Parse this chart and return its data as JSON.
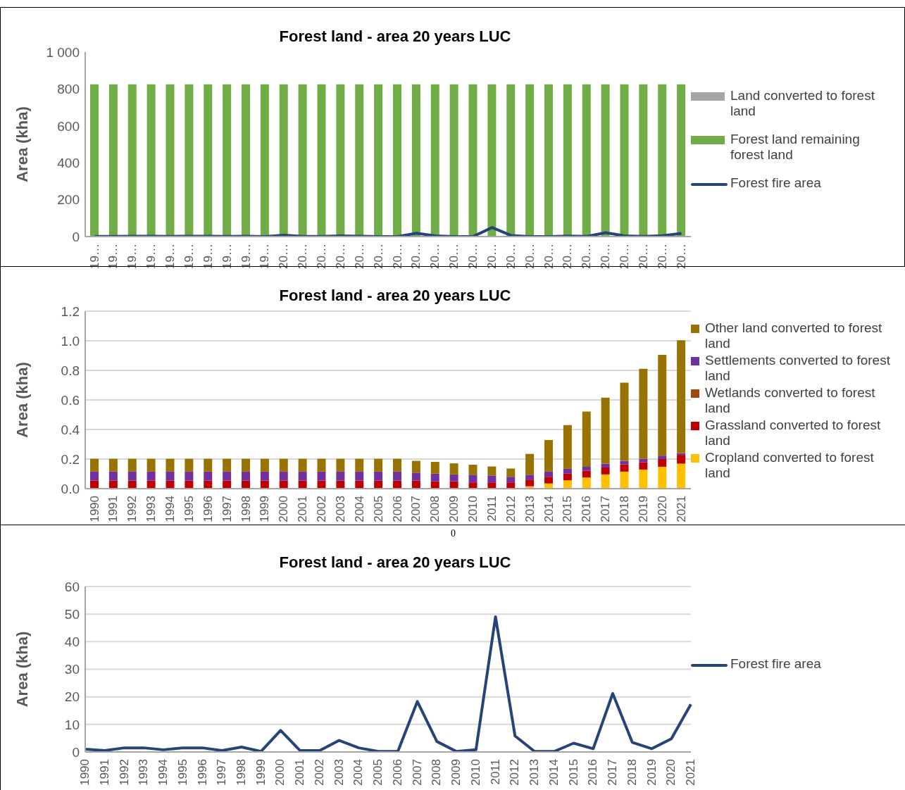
{
  "chart_data": [
    {
      "type": "bar",
      "title": "Forest land - area 20 years LUC",
      "ylabel": "Area (kha)",
      "stacked": true,
      "grid": false,
      "legend": "right",
      "marker": "none",
      "categories": [
        "19…",
        "19…",
        "19…",
        "19…",
        "19…",
        "19…",
        "19…",
        "19…",
        "19…",
        "19…",
        "20…",
        "20…",
        "20…",
        "20…",
        "20…",
        "20…",
        "20…",
        "20…",
        "20…",
        "20…",
        "20…",
        "20…",
        "20…",
        "20…",
        "20…",
        "20…",
        "20…",
        "20…",
        "20…",
        "20…",
        "20…",
        "20…"
      ],
      "ylim": [
        0,
        1000
      ],
      "yticks": [
        0,
        200,
        400,
        600,
        800,
        {
          "value": 1000,
          "label": "1 000"
        }
      ],
      "series": [
        {
          "name": "Forest land remaining forest land",
          "color": "#70ad47",
          "values": [
            825,
            825,
            825,
            825,
            825,
            825,
            825,
            825,
            825,
            825,
            825,
            825,
            825,
            825,
            825,
            825,
            825,
            825,
            825,
            825,
            825,
            825,
            825,
            825,
            825,
            825,
            825,
            825,
            825,
            825,
            825,
            825
          ]
        },
        {
          "name": "Land converted to forest land",
          "color": "#a5a5a5",
          "values": [
            0,
            0,
            0,
            0,
            0,
            0,
            0,
            0,
            0,
            0,
            0,
            0,
            0,
            0,
            0,
            0,
            0,
            0,
            0,
            0,
            0,
            0,
            0,
            0,
            0,
            0,
            0,
            0,
            0,
            0,
            0,
            0
          ]
        },
        {
          "name": "Forest fire area",
          "type": "line",
          "color": "#264478",
          "values": [
            1,
            1,
            2,
            2,
            1,
            2,
            2,
            1,
            2,
            0,
            8,
            1,
            1,
            4,
            2,
            0,
            0,
            18,
            4,
            0,
            1,
            49,
            6,
            0,
            0,
            3,
            1,
            21,
            4,
            1,
            5,
            17
          ]
        }
      ]
    },
    {
      "type": "bar",
      "title": "Forest land - area 20 years LUC",
      "ylabel": "Area (kha)",
      "stacked": true,
      "grid": "y",
      "legend": "right",
      "categories": [
        "1990",
        "1991",
        "1992",
        "1993",
        "1994",
        "1995",
        "1996",
        "1997",
        "1998",
        "1999",
        "2000",
        "2001",
        "2002",
        "2003",
        "2004",
        "2005",
        "2006",
        "2007",
        "2008",
        "2009",
        "2010",
        "2011",
        "2012",
        "2013",
        "2014",
        "2015",
        "2016",
        "2017",
        "2018",
        "2019",
        "2020",
        "2021"
      ],
      "ylim": [
        0,
        1.2
      ],
      "yticks": [
        {
          "value": 0,
          "label": "0.0"
        },
        {
          "value": 0.2,
          "label": "0.2"
        },
        {
          "value": 0.4,
          "label": "0.4"
        },
        {
          "value": 0.6,
          "label": "0.6"
        },
        {
          "value": 0.8,
          "label": "0.8"
        },
        {
          "value": 1,
          "label": "1.0"
        },
        {
          "value": 1.2,
          "label": "1.2"
        }
      ],
      "series": [
        {
          "name": "Cropland converted to forest land",
          "color": "#ffc000",
          "values": [
            0,
            0,
            0,
            0,
            0,
            0,
            0,
            0,
            0,
            0,
            0,
            0,
            0,
            0,
            0,
            0,
            0,
            0,
            0,
            0,
            0,
            0,
            0,
            0.016,
            0.035,
            0.056,
            0.075,
            0.096,
            0.115,
            0.129,
            0.148,
            0.169
          ]
        },
        {
          "name": "Grassland converted to forest land",
          "color": "#c00000",
          "values": [
            0.054,
            0.054,
            0.054,
            0.054,
            0.054,
            0.054,
            0.054,
            0.054,
            0.054,
            0.054,
            0.054,
            0.054,
            0.054,
            0.054,
            0.054,
            0.054,
            0.054,
            0.054,
            0.049,
            0.049,
            0.042,
            0.042,
            0.042,
            0.045,
            0.045,
            0.045,
            0.047,
            0.047,
            0.049,
            0.05,
            0.052,
            0.059
          ]
        },
        {
          "name": "Wetlands converted to forest land",
          "color": "#9e480e",
          "values": [
            0,
            0,
            0,
            0,
            0,
            0,
            0,
            0,
            0,
            0,
            0,
            0,
            0,
            0,
            0,
            0,
            0,
            0,
            0,
            0,
            0,
            0,
            0,
            0,
            0,
            0,
            0,
            0,
            0,
            0,
            0,
            0
          ]
        },
        {
          "name": "Settlements converted to forest land",
          "color": "#7030a0",
          "values": [
            0.061,
            0.061,
            0.061,
            0.061,
            0.061,
            0.061,
            0.061,
            0.061,
            0.061,
            0.061,
            0.061,
            0.061,
            0.061,
            0.061,
            0.061,
            0.061,
            0.061,
            0.054,
            0.052,
            0.047,
            0.052,
            0.047,
            0.038,
            0.033,
            0.035,
            0.033,
            0.026,
            0.026,
            0.024,
            0.023,
            0.023,
            0.012
          ]
        },
        {
          "name": "Other land converted to forest land",
          "color": "#997300",
          "values": [
            0.087,
            0.087,
            0.087,
            0.087,
            0.087,
            0.087,
            0.087,
            0.087,
            0.087,
            0.087,
            0.087,
            0.087,
            0.087,
            0.087,
            0.087,
            0.087,
            0.087,
            0.08,
            0.08,
            0.075,
            0.068,
            0.061,
            0.056,
            0.141,
            0.214,
            0.296,
            0.374,
            0.447,
            0.529,
            0.609,
            0.682,
            0.763
          ]
        }
      ]
    },
    {
      "type": "line",
      "title": "Forest land - area 20 years LUC",
      "ylabel": "Area (kha)",
      "grid": "y",
      "legend": "right",
      "marker": "none",
      "annotations": [
        "0"
      ],
      "categories": [
        "1990",
        "1991",
        "1992",
        "1993",
        "1994",
        "1995",
        "1996",
        "1997",
        "1998",
        "1999",
        "2000",
        "2001",
        "2002",
        "2003",
        "2004",
        "2005",
        "2006",
        "2007",
        "2008",
        "2009",
        "2010",
        "2011",
        "2012",
        "2013",
        "2014",
        "2015",
        "2016",
        "2017",
        "2018",
        "2019",
        "2020",
        "2021"
      ],
      "ylim": [
        0,
        60
      ],
      "yticks": [
        0,
        10,
        20,
        30,
        40,
        50,
        60
      ],
      "series": [
        {
          "name": "Forest fire area",
          "color": "#264478",
          "values": [
            1,
            0.5,
            1.5,
            1.5,
            0.8,
            1.5,
            1.5,
            0.5,
            1.8,
            0.2,
            7.8,
            0.5,
            0.5,
            4.2,
            1.5,
            0.2,
            0.2,
            18.3,
            3.8,
            0.2,
            0.8,
            49,
            5.8,
            0.2,
            0.2,
            3.2,
            1.2,
            21.2,
            3.5,
            1.2,
            4.8,
            17.3
          ]
        }
      ]
    }
  ]
}
